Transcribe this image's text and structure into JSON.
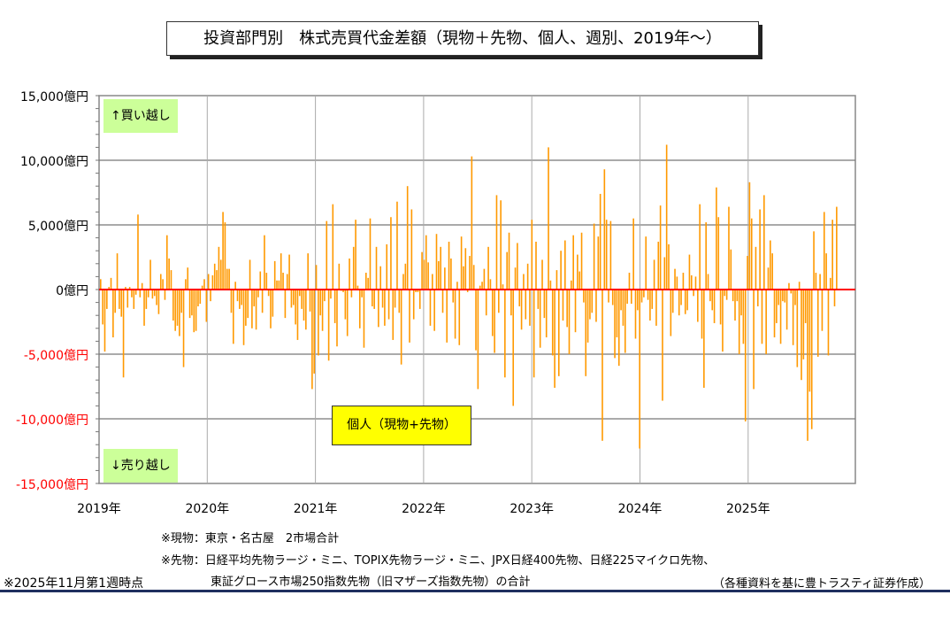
{
  "chart_data": {
    "type": "bar",
    "title": "投資部門別　株式売買代金差額（現物＋先物、個人、週別、2019年～）",
    "series_label": "個人（現物+先物）",
    "unit": "億円",
    "ylim": [
      -15000,
      15000
    ],
    "yticks": [
      15000,
      10000,
      5000,
      0,
      -5000,
      -10000,
      -15000
    ],
    "ytick_labels": [
      "15,000億円",
      "10,000億円",
      "5,000億円",
      "0億円",
      "-5,000億円",
      "-10,000億円",
      "-15,000億円"
    ],
    "xtick_labels": [
      "2019年",
      "2020年",
      "2021年",
      "2022年",
      "2023年",
      "2024年",
      "2025年"
    ],
    "grid": true,
    "colors": {
      "bar": "#ff9900",
      "zero_line": "#ff0000",
      "negative_label": "#ff0000"
    },
    "annotations": {
      "buy": "↑買い越し",
      "sell": "↓売り越し"
    },
    "weekly_values_by_year": [
      {
        "year": 2019,
        "values": [
          800,
          -2700,
          -4800,
          -1500,
          200,
          900,
          -3700,
          -1800,
          2800,
          -1500,
          -2100,
          -6800,
          200,
          -1400,
          200,
          -600,
          -1500,
          -400,
          5800,
          -600,
          500,
          -2800,
          -1500,
          -600,
          2300,
          -700,
          -500,
          -1200,
          -1900,
          1200,
          800,
          -800,
          4200,
          2400,
          1500,
          -2400,
          -3200,
          -2800,
          -3600,
          -1800,
          -6000,
          800,
          1700,
          -2200,
          -2000,
          -3300,
          -3200,
          -1300,
          -1100,
          300,
          800,
          -2500
        ]
      },
      {
        "year": 2020,
        "values": [
          1200,
          -900,
          1100,
          2000,
          1500,
          3300,
          2300,
          6000,
          5200,
          1600,
          1600,
          -1800,
          -4200,
          600,
          -900,
          -1500,
          -1200,
          -4300,
          -2800,
          -2200,
          2300,
          -3000,
          -1300,
          -3100,
          -600,
          1400,
          -1800,
          4200,
          1300,
          -500,
          -3000,
          -2100,
          2200,
          700,
          700,
          2800,
          1300,
          -2200,
          1200,
          2700,
          -1400,
          -1200,
          -2700,
          -3900,
          -500,
          -1500,
          -2400,
          -3100,
          2800,
          -1700,
          -7700,
          -6500
        ]
      },
      {
        "year": 2021,
        "values": [
          1900,
          -5100,
          -2000,
          -3200,
          -900,
          5300,
          -5500,
          -700,
          6600,
          -2600,
          -4400,
          2000,
          -100,
          -200,
          -2300,
          -3600,
          2400,
          -600,
          3300,
          5400,
          300,
          -3000,
          -600,
          -4500,
          1300,
          900,
          5500,
          -1300,
          -1500,
          3300,
          -2900,
          1800,
          -1400,
          -2800,
          3500,
          -2300,
          5600,
          -3900,
          -1400,
          6800,
          -1800,
          -5800,
          1200,
          2000,
          8000,
          -4100,
          6200,
          -2300,
          -200,
          -200,
          -1500,
          2900
        ]
      },
      {
        "year": 2022,
        "values": [
          2300,
          4200,
          2100,
          -2800,
          1200,
          -3200,
          4300,
          2200,
          3300,
          -1800,
          1700,
          -4100,
          3700,
          2400,
          -1000,
          -3800,
          600,
          -4300,
          4100,
          1800,
          3200,
          -200,
          2600,
          10300,
          1900,
          -4700,
          -7700,
          300,
          600,
          1600,
          -2000,
          3300,
          800,
          -3600,
          -4900,
          7300,
          -1800,
          6900,
          400,
          -6800,
          2900,
          4400,
          -2000,
          -9000,
          1700,
          3600,
          -1300,
          -3100,
          1200,
          -2300,
          2000,
          -2800
        ]
      },
      {
        "year": 2023,
        "values": [
          5400,
          -6800,
          3700,
          -1500,
          -4500,
          2300,
          -2200,
          -3700,
          11000,
          700,
          -5100,
          -7600,
          1500,
          -6700,
          3000,
          -2400,
          3800,
          -2900,
          -5000,
          700,
          4200,
          -3300,
          2700,
          1400,
          4400,
          -1000,
          -6700,
          -4100,
          -2300,
          -1800,
          5100,
          -2500,
          4100,
          7400,
          -11700,
          9300,
          5400,
          -1000,
          5300,
          -1200,
          -5300,
          -3700,
          -5900,
          -1600,
          -2800,
          -4900,
          -1100,
          1300,
          -1100,
          5500,
          -3800,
          -1600
        ]
      },
      {
        "year": 2024,
        "values": [
          -12300,
          -1000,
          -600,
          4100,
          -800,
          -2400,
          -1500,
          2300,
          -2800,
          3700,
          6500,
          -8600,
          2500,
          11200,
          3500,
          -3600,
          -1800,
          1600,
          1000,
          -2000,
          -1200,
          1300,
          -1900,
          -1600,
          2700,
          1100,
          -500,
          1000,
          -2500,
          6600,
          -3800,
          -7600,
          5200,
          1200,
          -900,
          -1600,
          -2600,
          7900,
          5600,
          -2700,
          -4800,
          -500,
          -800,
          6400,
          3100,
          -900,
          -2400,
          -900,
          -5000,
          -2000,
          -4200,
          -10200
        ]
      },
      {
        "year": 2025,
        "values": [
          2600,
          8300,
          5500,
          -7700,
          3300,
          -1300,
          6200,
          -4200,
          7300,
          -5000,
          1700,
          3800,
          2800,
          -3700,
          -2600,
          -1200,
          -4200,
          -900,
          -1000,
          -3100,
          500,
          -300,
          -4300,
          -1200,
          -6000,
          600,
          -7000,
          -5400,
          -2600,
          -11700,
          -7900,
          -10800,
          4500,
          1300,
          -5200,
          1200,
          -3200,
          6000,
          2800,
          -5100,
          900,
          5400,
          -1300,
          6400
        ]
      }
    ]
  },
  "notes": {
    "spot": "※現物：東京・名古屋　2市場合計",
    "futures_line1": "※先物：日経平均先物ラージ・ミニ、TOPIX先物ラージ・ミニ、JPX日経400先物、日経225マイクロ先物、",
    "futures_line2": "東証グロース市場250指数先物（旧マザーズ指数先物）の合計",
    "as_of": "※2025年11月第1週時点",
    "source": "（各種資料を基に豊トラスティ証券作成）"
  }
}
